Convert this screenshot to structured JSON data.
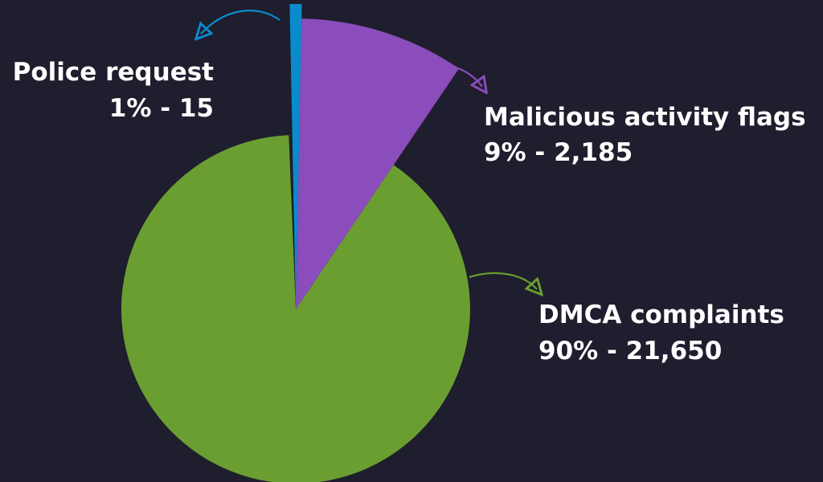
{
  "chart_data": {
    "type": "pie",
    "title": "",
    "slices": [
      {
        "name": "Police request",
        "percent_label": "1% - 15",
        "value": 15,
        "color": "#0a8bcc"
      },
      {
        "name": "Malicious activity flags",
        "percent_label": "9% - 2,185",
        "value": 2185,
        "color": "#8a4dbb"
      },
      {
        "name": "DMCA complaints",
        "percent_label": "90% - 21,650",
        "value": 21650,
        "color": "#6b9e31"
      }
    ],
    "background_color": "#1e1e2e",
    "label_color": "#ffffff"
  }
}
